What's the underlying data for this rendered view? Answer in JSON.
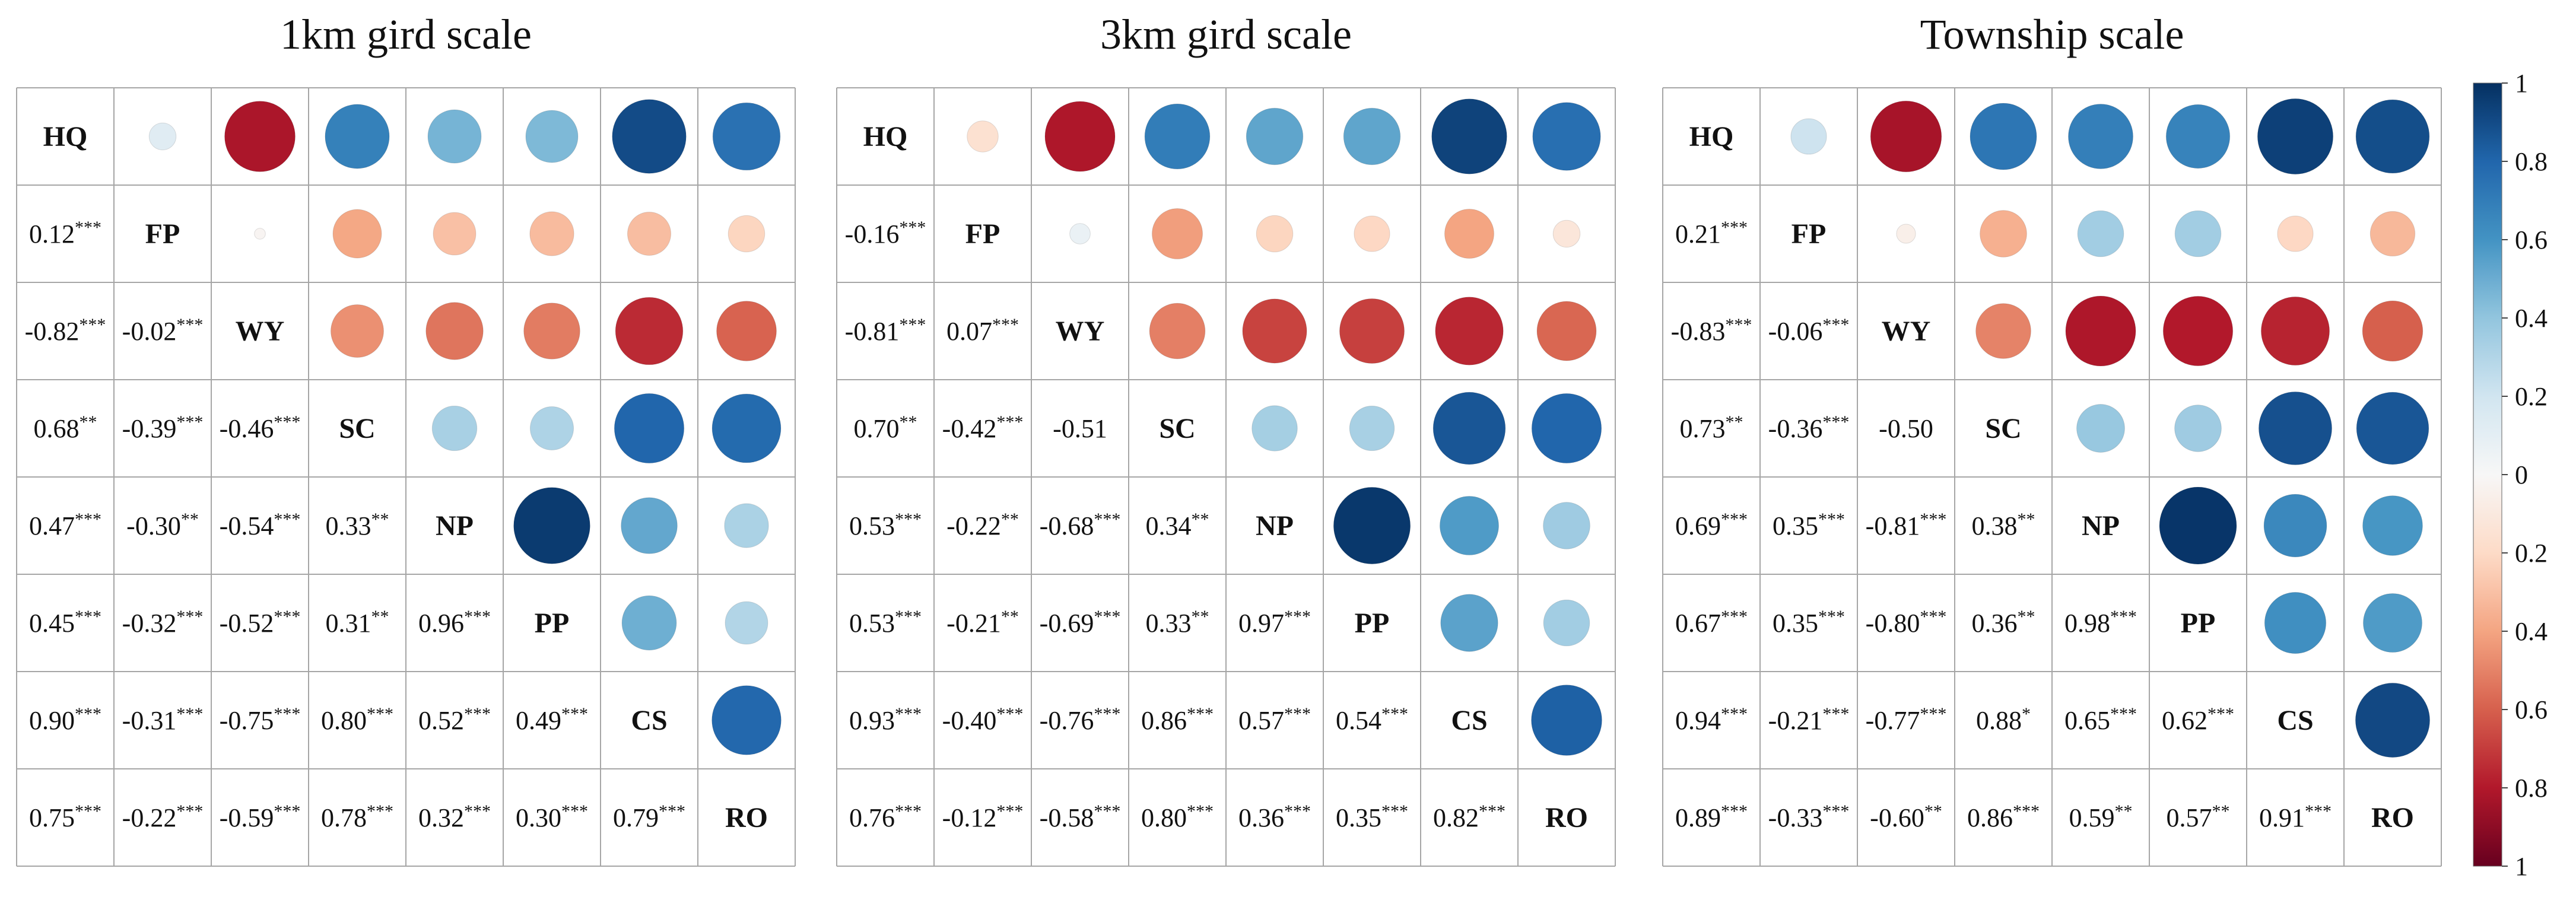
{
  "chart_data": {
    "type": "heatmap",
    "subtype": "correlation-matrix",
    "variables": [
      "HQ",
      "FP",
      "WY",
      "SC",
      "NP",
      "PP",
      "CS",
      "RO"
    ],
    "color_scale": {
      "range": [
        -1,
        1
      ],
      "tick_labels": [
        "1",
        "0.8",
        "0.6",
        "0.4",
        "0.2",
        "0",
        "0.2",
        "0.4",
        "0.6",
        "0.8",
        "1"
      ],
      "positive_color": "#0b3268",
      "neutral_color": "#f7f7f7",
      "negative_color": "#6b0f1f"
    },
    "panels": [
      {
        "title": "1km gird scale",
        "lower": [
          [
            {
              "v": "0.12",
              "s": "***"
            }
          ],
          [
            {
              "v": "-0.82",
              "s": "***"
            },
            {
              "v": "-0.02",
              "s": "***"
            }
          ],
          [
            {
              "v": "0.68",
              "s": "**"
            },
            {
              "v": "-0.39",
              "s": "***"
            },
            {
              "v": "-0.46",
              "s": "***"
            }
          ],
          [
            {
              "v": "0.47",
              "s": "***"
            },
            {
              "v": "-0.30",
              "s": "**"
            },
            {
              "v": "-0.54",
              "s": "***"
            },
            {
              "v": "0.33",
              "s": "**"
            }
          ],
          [
            {
              "v": "0.45",
              "s": "***"
            },
            {
              "v": "-0.32",
              "s": "***"
            },
            {
              "v": "-0.52",
              "s": "***"
            },
            {
              "v": "0.31",
              "s": "**"
            },
            {
              "v": "0.96",
              "s": "***"
            }
          ],
          [
            {
              "v": "0.90",
              "s": "***"
            },
            {
              "v": "-0.31",
              "s": "***"
            },
            {
              "v": "-0.75",
              "s": "***"
            },
            {
              "v": "0.80",
              "s": "***"
            },
            {
              "v": "0.52",
              "s": "***"
            },
            {
              "v": "0.49",
              "s": "***"
            }
          ],
          [
            {
              "v": "0.75",
              "s": "***"
            },
            {
              "v": "-0.22",
              "s": "***"
            },
            {
              "v": "-0.59",
              "s": "***"
            },
            {
              "v": "0.78",
              "s": "***"
            },
            {
              "v": "0.32",
              "s": "***"
            },
            {
              "v": "0.30",
              "s": "***"
            },
            {
              "v": "0.79",
              "s": "***"
            }
          ]
        ]
      },
      {
        "title": "3km gird scale",
        "lower": [
          [
            {
              "v": "-0.16",
              "s": "***"
            }
          ],
          [
            {
              "v": "-0.81",
              "s": "***"
            },
            {
              "v": "0.07",
              "s": "***"
            }
          ],
          [
            {
              "v": "0.70",
              "s": "**"
            },
            {
              "v": "-0.42",
              "s": "***"
            },
            {
              "v": "-0.51",
              "s": ""
            }
          ],
          [
            {
              "v": "0.53",
              "s": "***"
            },
            {
              "v": "-0.22",
              "s": "**"
            },
            {
              "v": "-0.68",
              "s": "***"
            },
            {
              "v": "0.34",
              "s": "**"
            }
          ],
          [
            {
              "v": "0.53",
              "s": "***"
            },
            {
              "v": "-0.21",
              "s": "**"
            },
            {
              "v": "-0.69",
              "s": "***"
            },
            {
              "v": "0.33",
              "s": "**"
            },
            {
              "v": "0.97",
              "s": "***"
            }
          ],
          [
            {
              "v": "0.93",
              "s": "***"
            },
            {
              "v": "-0.40",
              "s": "***"
            },
            {
              "v": "-0.76",
              "s": "***"
            },
            {
              "v": "0.86",
              "s": "***"
            },
            {
              "v": "0.57",
              "s": "***"
            },
            {
              "v": "0.54",
              "s": "***"
            }
          ],
          [
            {
              "v": "0.76",
              "s": "***"
            },
            {
              "v": "-0.12",
              "s": "***"
            },
            {
              "v": "-0.58",
              "s": "***"
            },
            {
              "v": "0.80",
              "s": "***"
            },
            {
              "v": "0.36",
              "s": "***"
            },
            {
              "v": "0.35",
              "s": "***"
            },
            {
              "v": "0.82",
              "s": "***"
            }
          ]
        ]
      },
      {
        "title": "Township scale",
        "lower": [
          [
            {
              "v": "0.21",
              "s": "***"
            }
          ],
          [
            {
              "v": "-0.83",
              "s": "***"
            },
            {
              "v": "-0.06",
              "s": "***"
            }
          ],
          [
            {
              "v": "0.73",
              "s": "**"
            },
            {
              "v": "-0.36",
              "s": "***"
            },
            {
              "v": "-0.50",
              "s": ""
            }
          ],
          [
            {
              "v": "0.69",
              "s": "***"
            },
            {
              "v": "0.35",
              "s": "***"
            },
            {
              "v": "-0.81",
              "s": "***"
            },
            {
              "v": "0.38",
              "s": "**"
            }
          ],
          [
            {
              "v": "0.67",
              "s": "***"
            },
            {
              "v": "0.35",
              "s": "***"
            },
            {
              "v": "-0.80",
              "s": "***"
            },
            {
              "v": "0.36",
              "s": "**"
            },
            {
              "v": "0.98",
              "s": "***"
            }
          ],
          [
            {
              "v": "0.94",
              "s": "***"
            },
            {
              "v": "-0.21",
              "s": "***"
            },
            {
              "v": "-0.77",
              "s": "***"
            },
            {
              "v": "0.88",
              "s": "*"
            },
            {
              "v": "0.65",
              "s": "***"
            },
            {
              "v": "0.62",
              "s": "***"
            }
          ],
          [
            {
              "v": "0.89",
              "s": "***"
            },
            {
              "v": "-0.33",
              "s": "***"
            },
            {
              "v": "-0.60",
              "s": "**"
            },
            {
              "v": "0.86",
              "s": "***"
            },
            {
              "v": "0.59",
              "s": "**"
            },
            {
              "v": "0.57",
              "s": "**"
            },
            {
              "v": "0.91",
              "s": "***"
            }
          ]
        ]
      }
    ]
  }
}
